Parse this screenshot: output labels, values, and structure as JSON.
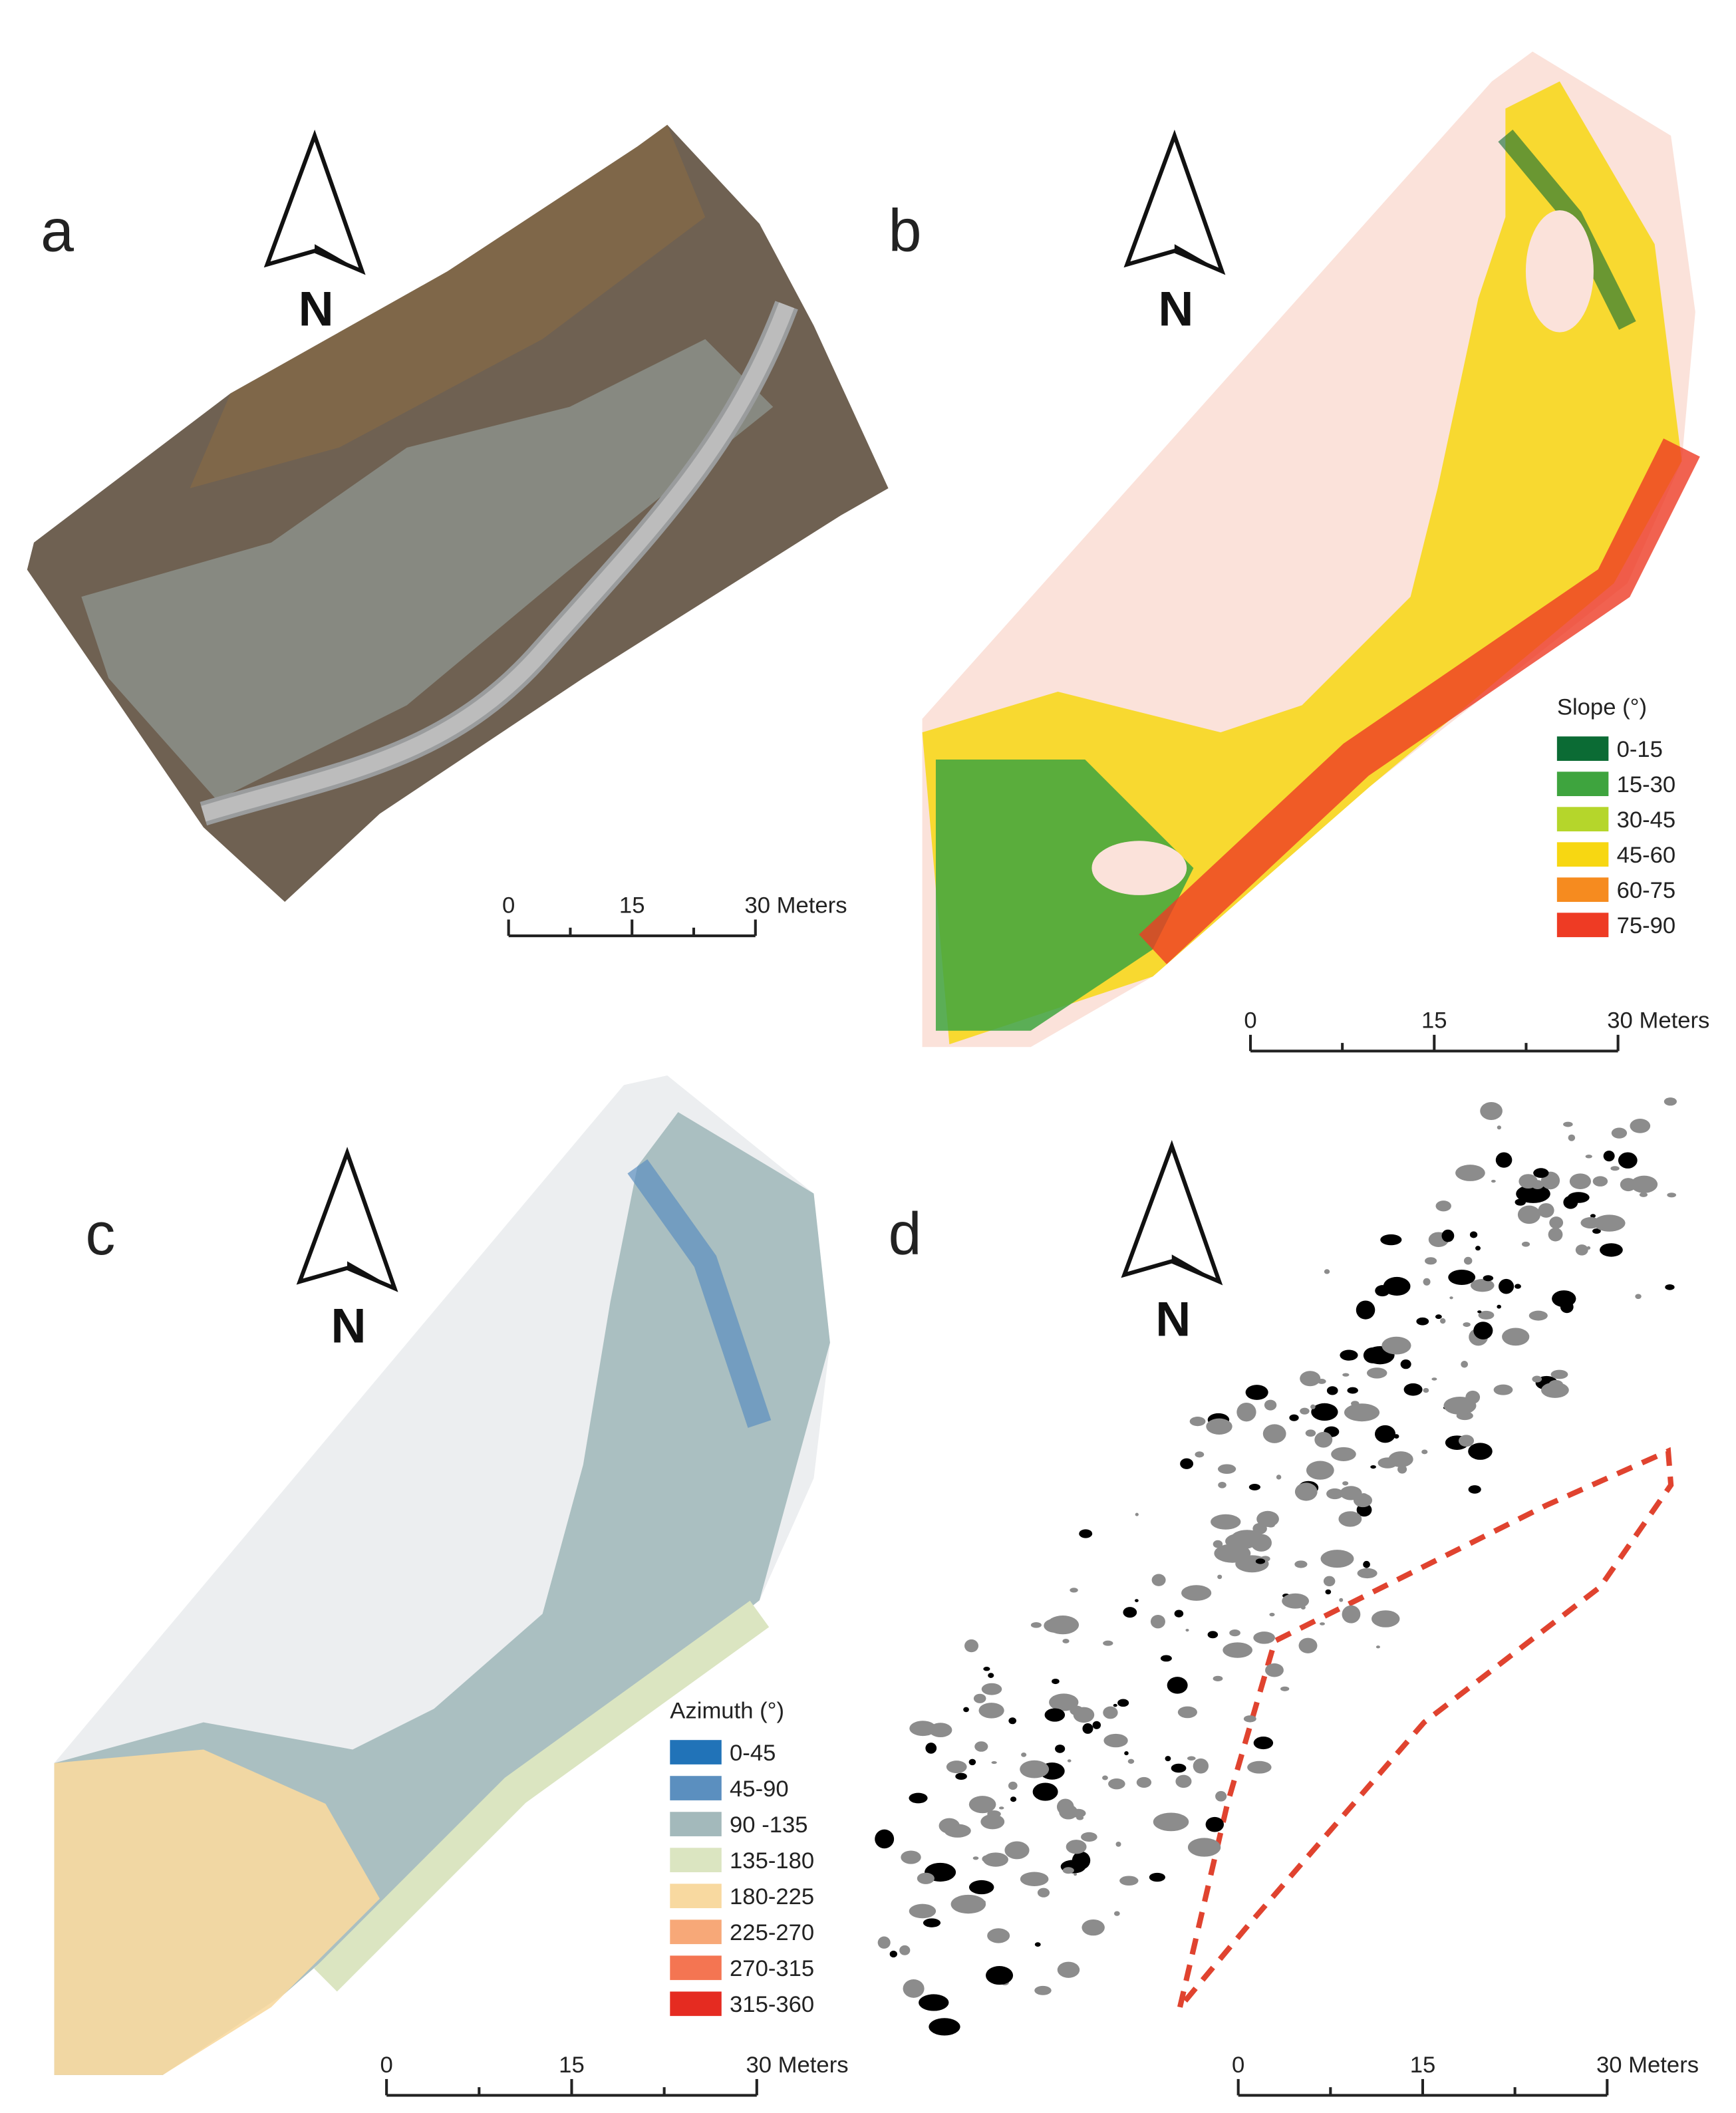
{
  "panels": [
    {
      "label": "a",
      "north": "N",
      "scale_bar": [
        "0",
        "15",
        "30 Meters"
      ]
    },
    {
      "label": "b",
      "north": "N",
      "scale_bar": [
        "0",
        "15",
        "30 Meters"
      ],
      "legend": {
        "title": "Slope (°)",
        "items": [
          {
            "label": "0-15",
            "color": "#0b6b34"
          },
          {
            "label": "15-30",
            "color": "#3ea43e"
          },
          {
            "label": "30-45",
            "color": "#b5d62b"
          },
          {
            "label": "45-60",
            "color": "#f7d712"
          },
          {
            "label": "60-75",
            "color": "#f68b1f"
          },
          {
            "label": "75-90",
            "color": "#ee3b24"
          }
        ]
      }
    },
    {
      "label": "c",
      "north": "N",
      "scale_bar": [
        "0",
        "15",
        "30 Meters"
      ],
      "legend": {
        "title": "Azimuth (°)",
        "items": [
          {
            "label": "0-45",
            "color": "#2173b8"
          },
          {
            "label": "45-90",
            "color": "#5b8fbf"
          },
          {
            "label": "90 -135",
            "color": "#a3b9bb"
          },
          {
            "label": "135-180",
            "color": "#dbe5c1"
          },
          {
            "label": "180-225",
            "color": "#f8d9a0"
          },
          {
            "label": "225-270",
            "color": "#f7a878"
          },
          {
            "label": "270-315",
            "color": "#f47552"
          },
          {
            "label": "315-360",
            "color": "#e52b21"
          }
        ]
      }
    },
    {
      "label": "d",
      "north": "N",
      "scale_bar": [
        "0",
        "15",
        "30 Meters"
      ]
    }
  ]
}
